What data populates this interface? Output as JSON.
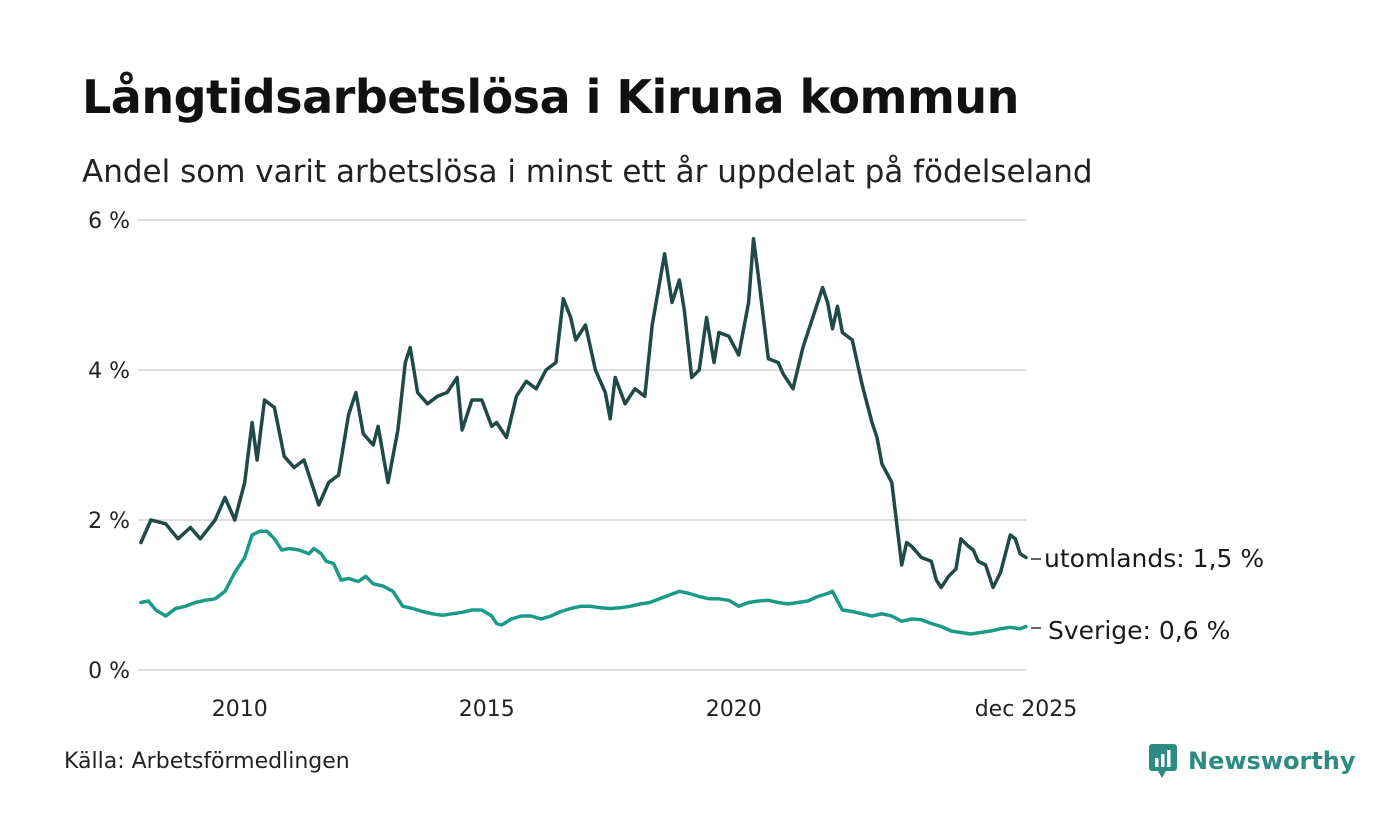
{
  "title": "Långtidsarbetslösa i Kiruna kommun",
  "subtitle": "Andel som varit arbetslösa i minst ett år uppdelat på födelseland",
  "source": "Källa: Arbetsförmedlingen",
  "brand": "Newsworthy",
  "colors": {
    "utomlands": "#1f4a45",
    "sverige": "#1b9a88",
    "grid": "#dddddd",
    "brand": "#2e8b84"
  },
  "chart_data": {
    "type": "line",
    "title": "Långtidsarbetslösa i Kiruna kommun",
    "subtitle": "Andel som varit arbetslösa i minst ett år uppdelat på födelseland",
    "xlabel": "",
    "ylabel": "",
    "x_range": [
      2008.0,
      2025.917
    ],
    "ylim": [
      0,
      6
    ],
    "y_ticks": [
      0,
      2,
      4,
      6
    ],
    "y_tick_labels": [
      "0 %",
      "2 %",
      "4 %",
      "6 %"
    ],
    "x_ticks": [
      2010,
      2015,
      2020,
      2025.917
    ],
    "x_tick_labels": [
      "2010",
      "2015",
      "2020",
      "dec 2025"
    ],
    "grid": true,
    "series": [
      {
        "name": "utomlands",
        "end_label": "utomlands: 1,5 %",
        "points": [
          [
            2008.0,
            1.7
          ],
          [
            2008.2,
            2.0
          ],
          [
            2008.5,
            1.95
          ],
          [
            2008.75,
            1.75
          ],
          [
            2009.0,
            1.9
          ],
          [
            2009.2,
            1.75
          ],
          [
            2009.5,
            2.0
          ],
          [
            2009.7,
            2.3
          ],
          [
            2009.9,
            2.0
          ],
          [
            2010.1,
            2.5
          ],
          [
            2010.25,
            3.3
          ],
          [
            2010.35,
            2.8
          ],
          [
            2010.5,
            3.6
          ],
          [
            2010.7,
            3.5
          ],
          [
            2010.9,
            2.85
          ],
          [
            2011.1,
            2.7
          ],
          [
            2011.3,
            2.8
          ],
          [
            2011.6,
            2.2
          ],
          [
            2011.8,
            2.5
          ],
          [
            2012.0,
            2.6
          ],
          [
            2012.2,
            3.4
          ],
          [
            2012.35,
            3.7
          ],
          [
            2012.5,
            3.15
          ],
          [
            2012.7,
            3.0
          ],
          [
            2012.8,
            3.25
          ],
          [
            2013.0,
            2.5
          ],
          [
            2013.2,
            3.2
          ],
          [
            2013.35,
            4.1
          ],
          [
            2013.45,
            4.3
          ],
          [
            2013.6,
            3.7
          ],
          [
            2013.8,
            3.55
          ],
          [
            2014.0,
            3.65
          ],
          [
            2014.2,
            3.7
          ],
          [
            2014.4,
            3.9
          ],
          [
            2014.5,
            3.2
          ],
          [
            2014.7,
            3.6
          ],
          [
            2014.9,
            3.6
          ],
          [
            2015.1,
            3.25
          ],
          [
            2015.2,
            3.3
          ],
          [
            2015.4,
            3.1
          ],
          [
            2015.6,
            3.65
          ],
          [
            2015.8,
            3.85
          ],
          [
            2016.0,
            3.75
          ],
          [
            2016.2,
            4.0
          ],
          [
            2016.4,
            4.1
          ],
          [
            2016.55,
            4.95
          ],
          [
            2016.7,
            4.7
          ],
          [
            2016.8,
            4.4
          ],
          [
            2017.0,
            4.6
          ],
          [
            2017.2,
            4.0
          ],
          [
            2017.4,
            3.7
          ],
          [
            2017.5,
            3.35
          ],
          [
            2017.6,
            3.9
          ],
          [
            2017.8,
            3.55
          ],
          [
            2018.0,
            3.75
          ],
          [
            2018.2,
            3.65
          ],
          [
            2018.35,
            4.6
          ],
          [
            2018.6,
            5.55
          ],
          [
            2018.75,
            4.9
          ],
          [
            2018.9,
            5.2
          ],
          [
            2019.0,
            4.8
          ],
          [
            2019.15,
            3.9
          ],
          [
            2019.3,
            4.0
          ],
          [
            2019.45,
            4.7
          ],
          [
            2019.6,
            4.1
          ],
          [
            2019.7,
            4.5
          ],
          [
            2019.9,
            4.45
          ],
          [
            2020.1,
            4.2
          ],
          [
            2020.3,
            4.9
          ],
          [
            2020.4,
            5.75
          ],
          [
            2020.5,
            5.25
          ],
          [
            2020.7,
            4.15
          ],
          [
            2020.9,
            4.1
          ],
          [
            2021.0,
            3.95
          ],
          [
            2021.2,
            3.75
          ],
          [
            2021.4,
            4.3
          ],
          [
            2021.6,
            4.7
          ],
          [
            2021.8,
            5.1
          ],
          [
            2021.9,
            4.9
          ],
          [
            2022.0,
            4.55
          ],
          [
            2022.1,
            4.85
          ],
          [
            2022.2,
            4.5
          ],
          [
            2022.4,
            4.4
          ],
          [
            2022.6,
            3.8
          ],
          [
            2022.8,
            3.3
          ],
          [
            2022.9,
            3.1
          ],
          [
            2023.0,
            2.75
          ],
          [
            2023.2,
            2.5
          ],
          [
            2023.4,
            1.4
          ],
          [
            2023.5,
            1.7
          ],
          [
            2023.6,
            1.65
          ],
          [
            2023.8,
            1.5
          ],
          [
            2024.0,
            1.45
          ],
          [
            2024.1,
            1.2
          ],
          [
            2024.2,
            1.1
          ],
          [
            2024.35,
            1.25
          ],
          [
            2024.5,
            1.35
          ],
          [
            2024.6,
            1.75
          ],
          [
            2024.75,
            1.65
          ],
          [
            2024.85,
            1.6
          ],
          [
            2024.95,
            1.45
          ],
          [
            2025.1,
            1.4
          ],
          [
            2025.25,
            1.1
          ],
          [
            2025.4,
            1.3
          ],
          [
            2025.5,
            1.55
          ],
          [
            2025.6,
            1.8
          ],
          [
            2025.7,
            1.75
          ],
          [
            2025.8,
            1.55
          ],
          [
            2025.917,
            1.5
          ]
        ]
      },
      {
        "name": "Sverige",
        "end_label": "Sverige: 0,6 %",
        "points": [
          [
            2008.0,
            0.9
          ],
          [
            2008.15,
            0.92
          ],
          [
            2008.3,
            0.8
          ],
          [
            2008.5,
            0.72
          ],
          [
            2008.7,
            0.82
          ],
          [
            2008.9,
            0.85
          ],
          [
            2009.1,
            0.9
          ],
          [
            2009.3,
            0.93
          ],
          [
            2009.5,
            0.95
          ],
          [
            2009.7,
            1.05
          ],
          [
            2009.9,
            1.3
          ],
          [
            2010.1,
            1.5
          ],
          [
            2010.25,
            1.8
          ],
          [
            2010.4,
            1.85
          ],
          [
            2010.55,
            1.85
          ],
          [
            2010.7,
            1.75
          ],
          [
            2010.85,
            1.6
          ],
          [
            2011.0,
            1.62
          ],
          [
            2011.2,
            1.6
          ],
          [
            2011.4,
            1.55
          ],
          [
            2011.5,
            1.62
          ],
          [
            2011.65,
            1.55
          ],
          [
            2011.75,
            1.45
          ],
          [
            2011.9,
            1.42
          ],
          [
            2012.05,
            1.2
          ],
          [
            2012.2,
            1.22
          ],
          [
            2012.4,
            1.18
          ],
          [
            2012.55,
            1.25
          ],
          [
            2012.7,
            1.15
          ],
          [
            2012.9,
            1.12
          ],
          [
            2013.1,
            1.05
          ],
          [
            2013.3,
            0.85
          ],
          [
            2013.5,
            0.82
          ],
          [
            2013.7,
            0.78
          ],
          [
            2013.9,
            0.75
          ],
          [
            2014.1,
            0.73
          ],
          [
            2014.3,
            0.75
          ],
          [
            2014.5,
            0.77
          ],
          [
            2014.7,
            0.8
          ],
          [
            2014.9,
            0.8
          ],
          [
            2015.1,
            0.72
          ],
          [
            2015.2,
            0.62
          ],
          [
            2015.3,
            0.6
          ],
          [
            2015.5,
            0.68
          ],
          [
            2015.7,
            0.72
          ],
          [
            2015.9,
            0.72
          ],
          [
            2016.1,
            0.68
          ],
          [
            2016.3,
            0.72
          ],
          [
            2016.5,
            0.78
          ],
          [
            2016.7,
            0.82
          ],
          [
            2016.9,
            0.85
          ],
          [
            2017.1,
            0.85
          ],
          [
            2017.3,
            0.83
          ],
          [
            2017.5,
            0.82
          ],
          [
            2017.7,
            0.83
          ],
          [
            2017.9,
            0.85
          ],
          [
            2018.1,
            0.88
          ],
          [
            2018.3,
            0.9
          ],
          [
            2018.5,
            0.95
          ],
          [
            2018.7,
            1.0
          ],
          [
            2018.9,
            1.05
          ],
          [
            2019.1,
            1.02
          ],
          [
            2019.3,
            0.98
          ],
          [
            2019.5,
            0.95
          ],
          [
            2019.7,
            0.95
          ],
          [
            2019.9,
            0.93
          ],
          [
            2020.1,
            0.85
          ],
          [
            2020.3,
            0.9
          ],
          [
            2020.5,
            0.92
          ],
          [
            2020.7,
            0.93
          ],
          [
            2020.9,
            0.9
          ],
          [
            2021.1,
            0.88
          ],
          [
            2021.3,
            0.9
          ],
          [
            2021.5,
            0.92
          ],
          [
            2021.7,
            0.98
          ],
          [
            2021.9,
            1.02
          ],
          [
            2022.0,
            1.05
          ],
          [
            2022.1,
            0.92
          ],
          [
            2022.2,
            0.8
          ],
          [
            2022.4,
            0.78
          ],
          [
            2022.6,
            0.75
          ],
          [
            2022.8,
            0.72
          ],
          [
            2023.0,
            0.75
          ],
          [
            2023.2,
            0.72
          ],
          [
            2023.4,
            0.65
          ],
          [
            2023.6,
            0.68
          ],
          [
            2023.8,
            0.67
          ],
          [
            2024.0,
            0.62
          ],
          [
            2024.2,
            0.58
          ],
          [
            2024.4,
            0.52
          ],
          [
            2024.6,
            0.5
          ],
          [
            2024.8,
            0.48
          ],
          [
            2025.0,
            0.5
          ],
          [
            2025.2,
            0.52
          ],
          [
            2025.4,
            0.55
          ],
          [
            2025.6,
            0.57
          ],
          [
            2025.8,
            0.55
          ],
          [
            2025.917,
            0.58
          ]
        ]
      }
    ]
  }
}
